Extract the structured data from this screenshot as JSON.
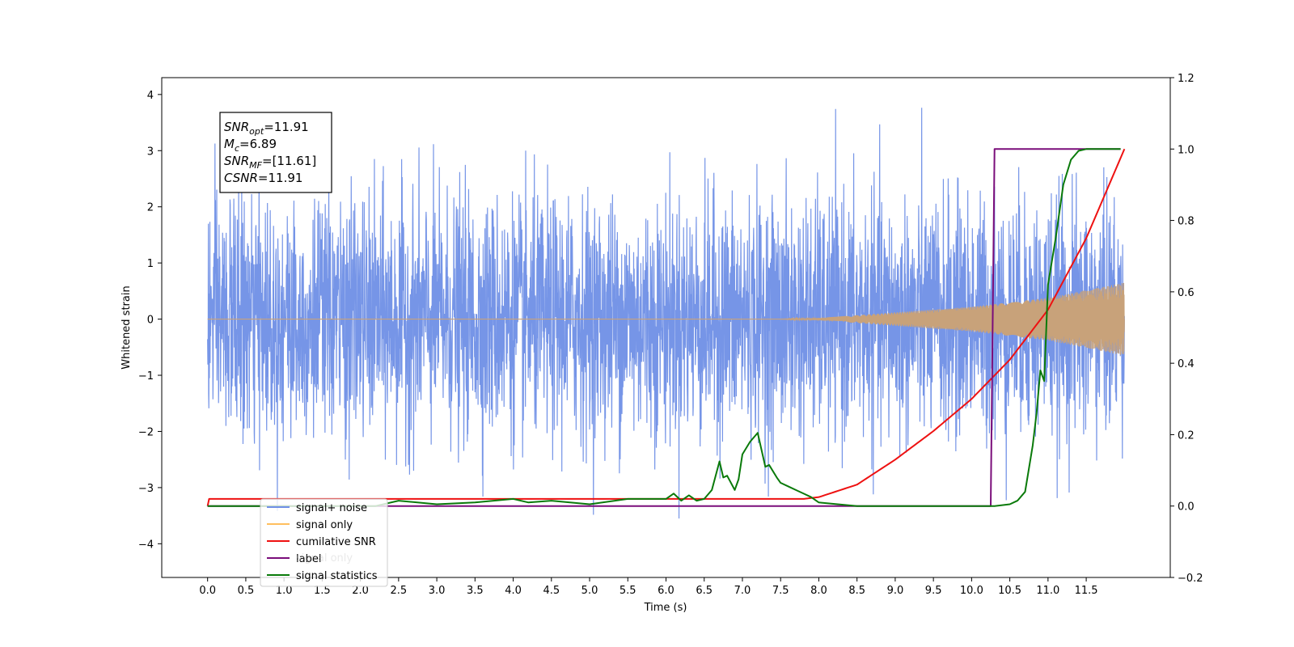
{
  "chart_data": {
    "type": "line",
    "xlabel": "Time (s)",
    "ylabel": "Whitened strain",
    "xlim": [
      -0.6,
      12.6
    ],
    "ylim": [
      -4.6,
      4.3
    ],
    "y2lim": [
      -0.2,
      1.2
    ],
    "x_ticks": [
      "0.0",
      "0.5",
      "1.0",
      "1.5",
      "2.0",
      "2.5",
      "3.0",
      "3.5",
      "4.0",
      "4.5",
      "5.0",
      "5.5",
      "6.0",
      "6.5",
      "7.0",
      "7.5",
      "8.0",
      "8.5",
      "9.0",
      "9.5",
      "10.0",
      "10.5",
      "11.0",
      "11.5"
    ],
    "y_ticks": [
      "4",
      "3",
      "2",
      "1",
      "0",
      "−1",
      "−2",
      "−3",
      "−4"
    ],
    "y2_ticks": [
      "1.2",
      "1.0",
      "0.8",
      "0.6",
      "0.4",
      "0.2",
      "0.0",
      "−0.2"
    ],
    "annotation": {
      "lines": [
        {
          "sym": "SNR",
          "sub": "opt",
          "val": "=11.91"
        },
        {
          "sym": "M",
          "sub": "c",
          "val": "=6.89"
        },
        {
          "sym": "SNR",
          "sub": "MF",
          "val": "=[11.61]"
        },
        {
          "sym": "CSNR",
          "sub": "",
          "val": "=11.91"
        }
      ]
    },
    "legend": {
      "position": "lower-left",
      "entries": [
        {
          "label": "signal+ noise",
          "color": "#6f8fe6"
        },
        {
          "label": "signal only",
          "color": "#ffbf5e"
        },
        {
          "label": "cumilative SNR",
          "color": "#ee1111"
        },
        {
          "label": "label",
          "color": "#7a0d7a"
        },
        {
          "label": "signal statistics",
          "color": "#0a7a0a"
        }
      ],
      "ghost_text": "signal only"
    },
    "series": [
      {
        "name": "signal+ noise",
        "axis": "left",
        "color": "#6f8fe6",
        "description_values": {
          "x_range": [
            0.0,
            12.0
          ],
          "amplitude_std": 1.0,
          "max": 3.9,
          "min": -4.1
        }
      },
      {
        "name": "signal only",
        "axis": "left",
        "color": "#c8a27a",
        "envelope": {
          "x": [
            0.0,
            7.5,
            8.0,
            9.0,
            10.0,
            11.0,
            12.0
          ],
          "amplitude": [
            0.0,
            0.0,
            0.02,
            0.12,
            0.22,
            0.38,
            0.65
          ]
        }
      },
      {
        "name": "cumilative SNR",
        "axis": "right",
        "color": "#ee1111",
        "x": [
          0.0,
          0.02,
          7.8,
          8.0,
          8.5,
          9.0,
          9.5,
          10.0,
          10.5,
          11.0,
          11.5,
          12.0
        ],
        "y": [
          0.0,
          0.02,
          0.02,
          0.025,
          0.06,
          0.13,
          0.21,
          0.3,
          0.41,
          0.55,
          0.75,
          1.0
        ]
      },
      {
        "name": "label",
        "axis": "right",
        "color": "#7a0d7a",
        "x": [
          0.0,
          10.25,
          10.3,
          11.95
        ],
        "y": [
          0.0,
          0.0,
          1.0,
          1.0
        ]
      },
      {
        "name": "signal statistics",
        "axis": "right",
        "color": "#0a7a0a",
        "x": [
          0.0,
          2.2,
          2.5,
          3.0,
          3.5,
          4.0,
          4.2,
          4.5,
          5.0,
          5.5,
          6.0,
          6.1,
          6.2,
          6.3,
          6.4,
          6.5,
          6.6,
          6.7,
          6.75,
          6.8,
          6.9,
          6.95,
          7.0,
          7.1,
          7.2,
          7.3,
          7.35,
          7.45,
          7.5,
          7.6,
          7.7,
          7.8,
          7.9,
          8.0,
          8.5,
          9.0,
          9.5,
          10.0,
          10.3,
          10.5,
          10.6,
          10.7,
          10.8,
          10.85,
          10.9,
          10.95,
          11.0,
          11.1,
          11.2,
          11.3,
          11.4,
          11.5,
          11.6,
          11.95
        ],
        "y": [
          0.0,
          0.0,
          0.015,
          0.005,
          0.01,
          0.02,
          0.01,
          0.015,
          0.005,
          0.02,
          0.02,
          0.035,
          0.015,
          0.03,
          0.015,
          0.02,
          0.045,
          0.125,
          0.08,
          0.085,
          0.045,
          0.075,
          0.145,
          0.18,
          0.205,
          0.11,
          0.115,
          0.08,
          0.065,
          0.055,
          0.045,
          0.035,
          0.025,
          0.01,
          0.0,
          0.0,
          0.0,
          0.0,
          0.0,
          0.005,
          0.015,
          0.04,
          0.17,
          0.26,
          0.38,
          0.35,
          0.62,
          0.75,
          0.9,
          0.97,
          0.995,
          1.0,
          1.0,
          1.0
        ]
      }
    ]
  }
}
